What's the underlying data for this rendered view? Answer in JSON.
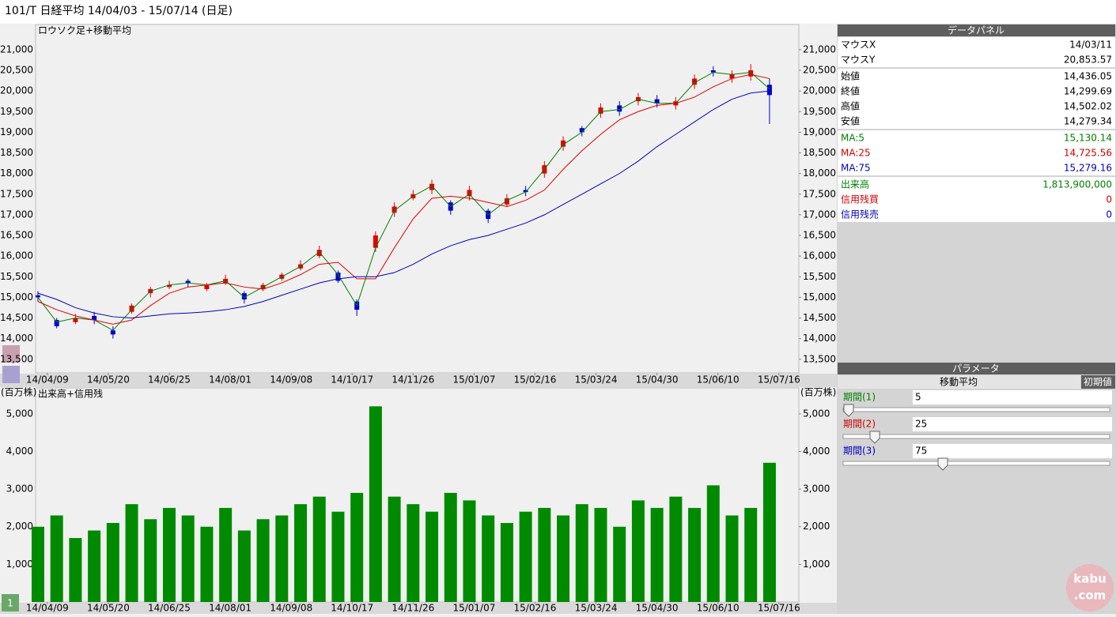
{
  "window": {
    "title": "101/T 日経平均  14/04/03 - 15/07/14 (日足)",
    "tab": "1"
  },
  "chart_data": [
    {
      "type": "candlestick",
      "title": "ロウソク足+移動平均",
      "x": [
        0,
        8,
        16,
        24,
        32,
        40,
        48,
        56,
        64,
        72,
        80,
        88,
        96,
        104,
        112,
        120,
        128,
        136,
        144,
        152,
        160,
        168,
        176,
        184,
        192,
        200,
        208,
        216,
        224,
        232,
        240,
        248,
        256,
        264,
        272,
        280,
        288,
        296,
        304,
        312
      ],
      "open": [
        15050,
        14450,
        14400,
        14550,
        14200,
        14650,
        15100,
        15250,
        15400,
        15200,
        15350,
        15100,
        15200,
        15450,
        15700,
        16000,
        15600,
        14900,
        16200,
        17050,
        17400,
        17600,
        17300,
        17450,
        17100,
        17250,
        17600,
        18000,
        18650,
        19100,
        19450,
        19650,
        19750,
        19800,
        19650,
        20150,
        20500,
        20300,
        20350,
        20150
      ],
      "high": [
        15150,
        14500,
        14600,
        14650,
        14300,
        14850,
        15250,
        15400,
        15450,
        15350,
        15550,
        15150,
        15350,
        15600,
        15900,
        16250,
        15650,
        14950,
        16600,
        17300,
        17600,
        17850,
        17350,
        17700,
        17150,
        17500,
        17700,
        18300,
        18900,
        19150,
        19700,
        19750,
        19950,
        19900,
        19850,
        20400,
        20600,
        20500,
        20650,
        20300
      ],
      "low": [
        14900,
        14250,
        14350,
        14350,
        14000,
        14600,
        15000,
        15200,
        15250,
        15150,
        15300,
        14850,
        15150,
        15400,
        15650,
        15950,
        15350,
        14550,
        16100,
        16950,
        17350,
        17500,
        17000,
        17350,
        16800,
        17200,
        17450,
        17900,
        18550,
        18900,
        19350,
        19400,
        19650,
        19600,
        19550,
        20050,
        20350,
        20200,
        20250,
        19200
      ],
      "close": [
        15000,
        14300,
        14500,
        14450,
        14100,
        14800,
        15200,
        15300,
        15350,
        15300,
        15450,
        14950,
        15300,
        15550,
        15800,
        16150,
        15400,
        14700,
        16500,
        17200,
        17500,
        17750,
        17100,
        17600,
        16900,
        17400,
        17550,
        18200,
        18800,
        19000,
        19600,
        19500,
        19850,
        19700,
        19750,
        20300,
        20450,
        20400,
        20500,
        19900
      ],
      "up_color": "#e00000",
      "down_color": "#0000d0",
      "series": [
        {
          "color": "#008000",
          "values": [
            15000,
            14400,
            14500,
            14450,
            14200,
            14700,
            15150,
            15300,
            15350,
            15300,
            15400,
            15000,
            15250,
            15500,
            15750,
            16100,
            15550,
            14800,
            16200,
            17100,
            17450,
            17700,
            17200,
            17500,
            17000,
            17350,
            17550,
            18100,
            18700,
            19000,
            19500,
            19550,
            19800,
            19700,
            19700,
            20200,
            20450,
            20400,
            20450,
            20050
          ]
        },
        {
          "color": "#e00000",
          "values": [
            14900,
            14700,
            14550,
            14450,
            14350,
            14450,
            14800,
            15100,
            15250,
            15300,
            15350,
            15250,
            15200,
            15350,
            15550,
            15800,
            15850,
            15450,
            15450,
            16200,
            16900,
            17400,
            17450,
            17400,
            17300,
            17200,
            17350,
            17600,
            18100,
            18550,
            18950,
            19300,
            19500,
            19650,
            19700,
            19850,
            20100,
            20300,
            20400,
            20300
          ]
        },
        {
          "color": "#0000c0",
          "values": [
            15100,
            14950,
            14750,
            14620,
            14530,
            14500,
            14550,
            14600,
            14620,
            14650,
            14700,
            14780,
            14900,
            15050,
            15200,
            15350,
            15450,
            15500,
            15500,
            15600,
            15800,
            16050,
            16250,
            16400,
            16500,
            16650,
            16800,
            17000,
            17250,
            17500,
            17750,
            18000,
            18300,
            18650,
            18950,
            19250,
            19550,
            19800,
            19950,
            20000
          ]
        }
      ],
      "xlim": [
        -1,
        324.5
      ],
      "xticks": [
        {
          "value": 4,
          "label": "14/04/09"
        },
        {
          "value": 30,
          "label": "14/05/20"
        },
        {
          "value": 56,
          "label": "14/06/25"
        },
        {
          "value": 82,
          "label": "14/08/01"
        },
        {
          "value": 108,
          "label": "14/09/08"
        },
        {
          "value": 134,
          "label": "14/10/17"
        },
        {
          "value": 160,
          "label": "14/11/26"
        },
        {
          "value": 186,
          "label": "15/01/07"
        },
        {
          "value": 212,
          "label": "15/02/16"
        },
        {
          "value": 238,
          "label": "15/03/24"
        },
        {
          "value": 264,
          "label": "15/04/30"
        },
        {
          "value": 290,
          "label": "15/06/10"
        },
        {
          "value": 316,
          "label": "15/07/16"
        }
      ],
      "ylim": [
        13170,
        21610
      ],
      "yticks": [
        {
          "value": 13500,
          "label": "13,500"
        },
        {
          "value": 14000,
          "label": "14,000"
        },
        {
          "value": 14500,
          "label": "14,500"
        },
        {
          "value": 15000,
          "label": "15,000"
        },
        {
          "value": 15500,
          "label": "15,500"
        },
        {
          "value": 16000,
          "label": "16,000"
        },
        {
          "value": 16500,
          "label": "16,500"
        },
        {
          "value": 17000,
          "label": "17,000"
        },
        {
          "value": 17500,
          "label": "17,500"
        },
        {
          "value": 18000,
          "label": "18,000"
        },
        {
          "value": 18500,
          "label": "18,500"
        },
        {
          "value": 19000,
          "label": "19,000"
        },
        {
          "value": 19500,
          "label": "19,500"
        },
        {
          "value": 20000,
          "label": "20,000"
        },
        {
          "value": 20500,
          "label": "20,500"
        },
        {
          "value": 21000,
          "label": "21,000"
        }
      ]
    },
    {
      "type": "bar",
      "title": "出来高+信用残",
      "unit_label": "(百万株)",
      "x": [
        0,
        8,
        16,
        24,
        32,
        40,
        48,
        56,
        64,
        72,
        80,
        88,
        96,
        104,
        112,
        120,
        128,
        136,
        144,
        152,
        160,
        168,
        176,
        184,
        192,
        200,
        208,
        216,
        224,
        232,
        240,
        248,
        256,
        264,
        272,
        280,
        288,
        296,
        304,
        312
      ],
      "values": [
        2000,
        2300,
        1700,
        1900,
        2100,
        2600,
        2200,
        2500,
        2300,
        2000,
        2500,
        1900,
        2200,
        2300,
        2600,
        2800,
        2400,
        2900,
        5200,
        2800,
        2600,
        2400,
        2900,
        2700,
        2300,
        2100,
        2400,
        2500,
        2300,
        2600,
        2500,
        2000,
        2700,
        2500,
        2800,
        2500,
        3100,
        2300,
        2500,
        3700
      ],
      "color": "#008a00",
      "xlim": [
        -1,
        324.5
      ],
      "xticks": [
        {
          "value": 4,
          "label": "14/04/09"
        },
        {
          "value": 30,
          "label": "14/05/20"
        },
        {
          "value": 56,
          "label": "14/06/25"
        },
        {
          "value": 82,
          "label": "14/08/01"
        },
        {
          "value": 108,
          "label": "14/09/08"
        },
        {
          "value": 134,
          "label": "14/10/17"
        },
        {
          "value": 160,
          "label": "14/11/26"
        },
        {
          "value": 186,
          "label": "15/01/07"
        },
        {
          "value": 212,
          "label": "15/02/16"
        },
        {
          "value": 238,
          "label": "15/03/24"
        },
        {
          "value": 264,
          "label": "15/04/30"
        },
        {
          "value": 290,
          "label": "15/06/10"
        },
        {
          "value": 316,
          "label": "15/07/16"
        }
      ],
      "ylim": [
        0,
        5690
      ],
      "yticks": [
        {
          "value": 1000,
          "label": "1,000"
        },
        {
          "value": 2000,
          "label": "2,000"
        },
        {
          "value": 3000,
          "label": "3,000"
        },
        {
          "value": 4000,
          "label": "4,000"
        },
        {
          "value": 5000,
          "label": "5,000"
        }
      ]
    }
  ],
  "data_panel": {
    "title": "データパネル",
    "groups": [
      [
        {
          "label": "マウスX",
          "value": "14/03/11"
        },
        {
          "label": "マウスY",
          "value": "20,853.57"
        }
      ],
      [
        {
          "label": "始値",
          "value": "14,436.05"
        },
        {
          "label": "終値",
          "value": "14,299.69"
        },
        {
          "label": "高値",
          "value": "14,502.02"
        },
        {
          "label": "安値",
          "value": "14,279.34"
        }
      ],
      [
        {
          "label": "MA:5",
          "value": "15,130.14",
          "color": "#008000"
        },
        {
          "label": "MA:25",
          "value": "14,725.56",
          "color": "#d00000"
        },
        {
          "label": "MA:75",
          "value": "15,279.16",
          "color": "#0000c0"
        }
      ],
      [
        {
          "label": "出来高",
          "value": "1,813,900,000",
          "color": "#008000"
        },
        {
          "label": "信用残買",
          "value": "0",
          "color": "#d00000"
        },
        {
          "label": "信用残売",
          "value": "0",
          "color": "#0000c0"
        }
      ]
    ]
  },
  "parameters": {
    "title": "パラメータ",
    "section": "移動平均",
    "reset": "初期値",
    "rows": [
      {
        "label": "期間(1)",
        "value": "5",
        "color": "#008000"
      },
      {
        "label": "期間(2)",
        "value": "25",
        "color": "#d00000"
      },
      {
        "label": "期間(3)",
        "value": "75",
        "color": "#0000c0"
      }
    ]
  },
  "logo": {
    "line1": "kabu",
    "line2": ".com"
  }
}
